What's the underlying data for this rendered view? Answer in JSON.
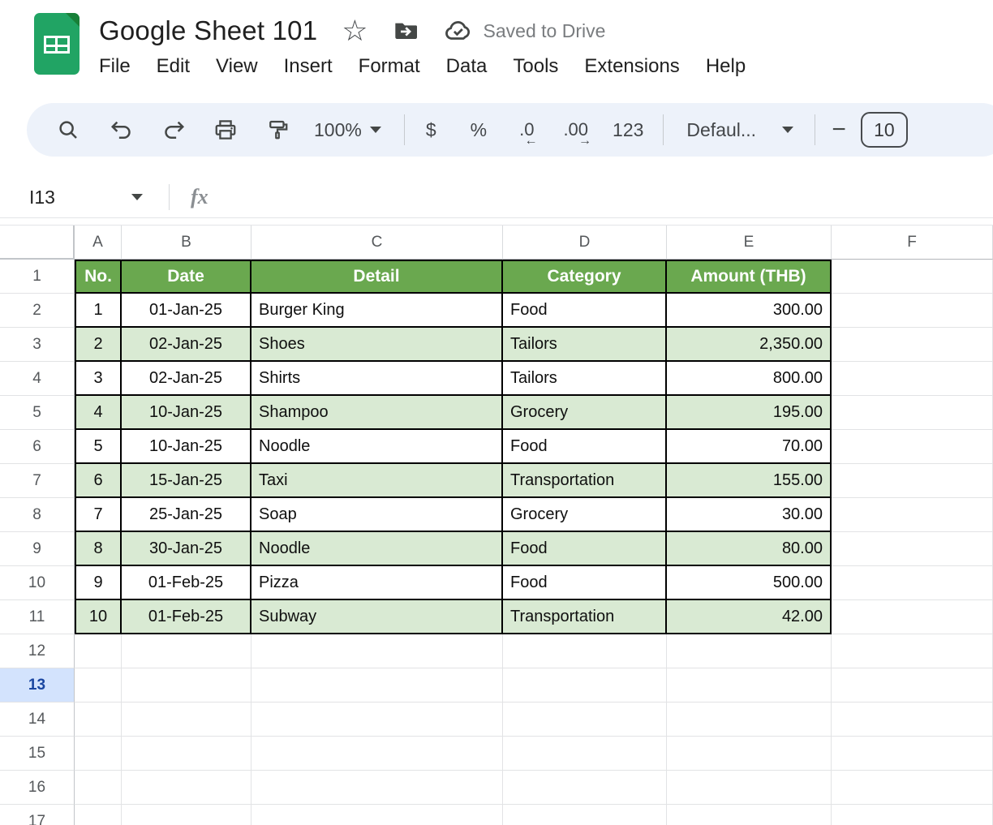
{
  "header": {
    "doc_title": "Google Sheet 101",
    "saved_status": "Saved to Drive",
    "menu": [
      "File",
      "Edit",
      "View",
      "Insert",
      "Format",
      "Data",
      "Tools",
      "Extensions",
      "Help"
    ]
  },
  "toolbar": {
    "zoom_value": "100%",
    "currency": "$",
    "percent": "%",
    "decrease_decimal": ".0",
    "increase_decimal": ".00",
    "more_formats": "123",
    "font_family_value": "Defaul...",
    "font_size_value": "10"
  },
  "icons": {
    "star": "☆",
    "arrow_left": "←",
    "arrow_right": "→",
    "minus": "−",
    "names": [
      "sheets-logo",
      "star-icon",
      "move-to-folder-icon",
      "cloud-saved-icon",
      "search-icon",
      "undo-icon",
      "redo-icon",
      "print-icon",
      "paint-format-icon",
      "zoom-dropdown-icon",
      "font-dropdown-icon",
      "name-box-dropdown-icon",
      "fx-icon"
    ]
  },
  "formula_bar": {
    "name_box_value": "I13",
    "fx": "fx"
  },
  "grid": {
    "column_headers": [
      "A",
      "B",
      "C",
      "D",
      "E",
      "F"
    ],
    "visible_row_count": 17,
    "selected_row_header": 13,
    "table": {
      "headers": [
        "No.",
        "Date",
        "Detail",
        "Category",
        "Amount (THB)"
      ],
      "rows": [
        [
          "1",
          "01-Jan-25",
          "Burger King",
          "Food",
          "300.00"
        ],
        [
          "2",
          "02-Jan-25",
          "Shoes",
          "Tailors",
          "2,350.00"
        ],
        [
          "3",
          "02-Jan-25",
          "Shirts",
          "Tailors",
          "800.00"
        ],
        [
          "4",
          "10-Jan-25",
          "Shampoo",
          "Grocery",
          "195.00"
        ],
        [
          "5",
          "10-Jan-25",
          "Noodle",
          "Food",
          "70.00"
        ],
        [
          "6",
          "15-Jan-25",
          "Taxi",
          "Transportation",
          "155.00"
        ],
        [
          "7",
          "25-Jan-25",
          "Soap",
          "Grocery",
          "30.00"
        ],
        [
          "8",
          "30-Jan-25",
          "Noodle",
          "Food",
          "80.00"
        ],
        [
          "9",
          "01-Feb-25",
          "Pizza",
          "Food",
          "500.00"
        ],
        [
          "10",
          "01-Feb-25",
          "Subway",
          "Transportation",
          "42.00"
        ]
      ]
    },
    "colors": {
      "table_header_bg": "#6aa84f",
      "banded_row_bg": "#d9ead3",
      "selected_row_header_bg": "#d3e3fd",
      "selected_row_header_text": "#1a46a0",
      "logo_green": "#21a464",
      "toolbar_bg": "#edf2fa"
    }
  }
}
